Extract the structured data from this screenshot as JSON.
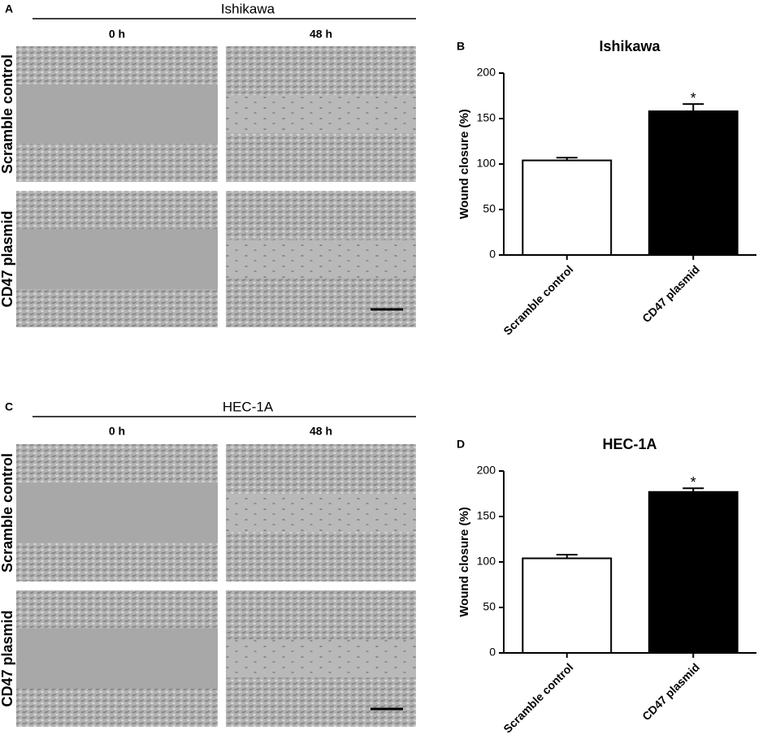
{
  "panels": [
    {
      "letter": "A",
      "title": "Ishikawa",
      "columns": [
        "0 h",
        "48 h"
      ],
      "rows": [
        "Scramble control",
        "CD47 plasmid"
      ]
    },
    {
      "letter": "C",
      "title": "HEC-1A",
      "columns": [
        "0 h",
        "48 h"
      ],
      "rows": [
        "Scramble control",
        "CD47 plasmid"
      ]
    }
  ],
  "chart_data": [
    {
      "type": "bar",
      "letter": "B",
      "title": "Ishikawa",
      "ylabel": "Wound closure (%)",
      "categories": [
        "Scramble control",
        "CD47 plasmid"
      ],
      "values": [
        104,
        158
      ],
      "errors": [
        3,
        8
      ],
      "colors": [
        "#ffffff",
        "#000000"
      ],
      "ylim": [
        0,
        200
      ],
      "yticks": [
        0,
        50,
        100,
        150,
        200
      ],
      "annotations": [
        {
          "text": "*",
          "category": "CD47 plasmid"
        }
      ]
    },
    {
      "type": "bar",
      "letter": "D",
      "title": "HEC-1A",
      "ylabel": "Wound closure (%)",
      "categories": [
        "Scramble control",
        "CD47 plasmid"
      ],
      "values": [
        104,
        177
      ],
      "errors": [
        4,
        4
      ],
      "colors": [
        "#ffffff",
        "#000000"
      ],
      "ylim": [
        0,
        200
      ],
      "yticks": [
        0,
        50,
        100,
        150,
        200
      ],
      "annotations": [
        {
          "text": "*",
          "category": "CD47 plasmid"
        }
      ]
    }
  ]
}
